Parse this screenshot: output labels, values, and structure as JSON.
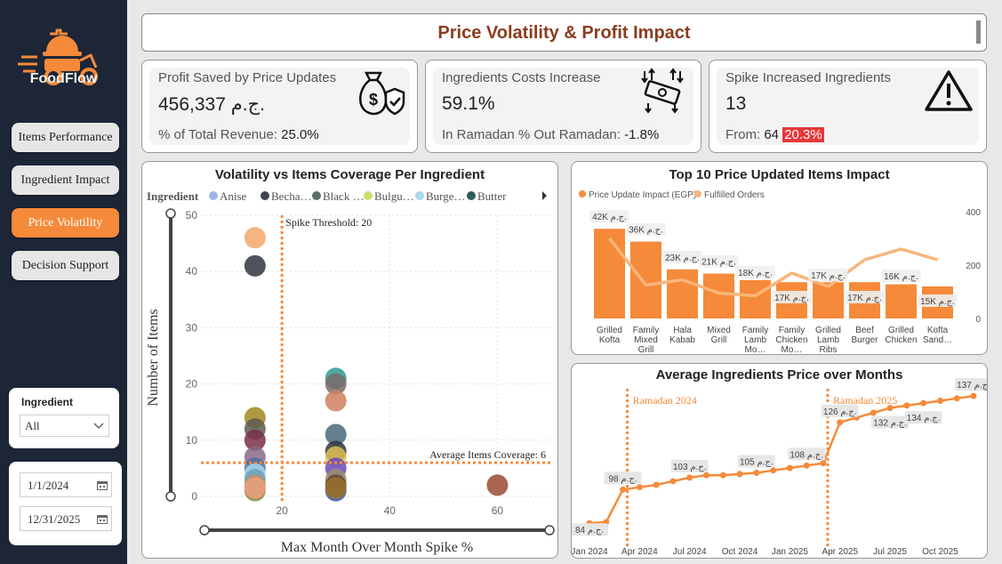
{
  "sidebar": {
    "brand": "FoodFlow",
    "nav": [
      {
        "label": "Items Performance"
      },
      {
        "label": "Ingredient Impact"
      },
      {
        "label": "Price Volatility"
      },
      {
        "label": "Decision Support"
      }
    ],
    "filter": {
      "title": "Ingredient",
      "value": "All"
    },
    "dates": {
      "start": "1/1/2024",
      "end": "12/31/2025"
    }
  },
  "page_title": "Price Volatility & Profit Impact",
  "kpis": [
    {
      "label": "Profit Saved by Price Updates",
      "value": "456,337 ج.م.",
      "sub_label": "% of Total Revenue:",
      "sub_value": "25.0%"
    },
    {
      "label": "Ingredients Costs Increase",
      "value": "59.1%",
      "sub_label": "In Ramadan % Out Ramadan:",
      "sub_value": "-1.8%"
    },
    {
      "label": "Spike Increased Ingredients",
      "value": "13",
      "sub_label": "From:",
      "sub_value": "64",
      "sub_pct": "20.3%"
    }
  ],
  "colors": {
    "accent": "#f58a3a",
    "sidebar": "#1c2636",
    "title": "#8b3d1d",
    "alert": "#e5383b"
  },
  "chart_data": [
    {
      "type": "scatter",
      "title": "Volatility vs Items Coverage Per Ingredient",
      "xlabel": "Max Month Over Month Spike %",
      "ylabel": "Number of Items",
      "xlim": [
        0,
        70
      ],
      "ylim": [
        0,
        50
      ],
      "x_ticks": [
        20,
        40,
        60
      ],
      "y_ticks": [
        0,
        10,
        20,
        30,
        40,
        50
      ],
      "legend_title": "Ingredient",
      "legend": [
        {
          "name": "Anise",
          "color": "#9fb3e8"
        },
        {
          "name": "Becha…",
          "color": "#3d4450"
        },
        {
          "name": "Black …",
          "color": "#5a6e64"
        },
        {
          "name": "Bulgu…",
          "color": "#c8e06a"
        },
        {
          "name": "Burge…",
          "color": "#a8d8ea"
        },
        {
          "name": "Butter",
          "color": "#2f5e5e"
        }
      ],
      "reference_lines": [
        {
          "axis": "x",
          "value": 20,
          "label": "Spike Threshold: 20"
        },
        {
          "axis": "y",
          "value": 6,
          "label": "Average Items Coverage: 6"
        }
      ],
      "points": [
        {
          "x": 15,
          "y": 46,
          "color": "#f5a86a"
        },
        {
          "x": 15,
          "y": 41,
          "color": "#2f3540"
        },
        {
          "x": 15,
          "y": 14,
          "color": "#a08a20"
        },
        {
          "x": 15,
          "y": 12,
          "color": "#5d5a50"
        },
        {
          "x": 15,
          "y": 10,
          "color": "#7a2f4a"
        },
        {
          "x": 15,
          "y": 7,
          "color": "#8a6a8a"
        },
        {
          "x": 15,
          "y": 5,
          "color": "#4a6fa0"
        },
        {
          "x": 15,
          "y": 4,
          "color": "#a8d8ea"
        },
        {
          "x": 15,
          "y": 3,
          "color": "#6aa0c0"
        },
        {
          "x": 15,
          "y": 2,
          "color": "#c09060"
        },
        {
          "x": 15,
          "y": 1,
          "color": "#8a8a4a"
        },
        {
          "x": 15,
          "y": 1.5,
          "color": "#f0a080"
        },
        {
          "x": 30,
          "y": 21,
          "color": "#2a9a90"
        },
        {
          "x": 30,
          "y": 20,
          "color": "#7a6a6a"
        },
        {
          "x": 30,
          "y": 17,
          "color": "#d08060"
        },
        {
          "x": 30,
          "y": 11,
          "color": "#4a6a7a"
        },
        {
          "x": 30,
          "y": 8,
          "color": "#2f3540"
        },
        {
          "x": 30,
          "y": 7,
          "color": "#e0c050"
        },
        {
          "x": 30,
          "y": 5,
          "color": "#6a4ac0"
        },
        {
          "x": 30,
          "y": 3,
          "color": "#a08a6a"
        },
        {
          "x": 30,
          "y": 2,
          "color": "#5a4a3a"
        },
        {
          "x": 30,
          "y": 1,
          "color": "#3a5aa0"
        },
        {
          "x": 30,
          "y": 1.5,
          "color": "#a07020"
        },
        {
          "x": 60,
          "y": 2,
          "color": "#9a4a30"
        }
      ]
    },
    {
      "type": "bar",
      "title": "Top 10 Price Updated Items Impact",
      "categories": [
        "Grilled Kofta",
        "Family Mixed Grill",
        "Hala Kabab",
        "Mixed Grill",
        "Family Lamb Mo…",
        "Family Chicken Mo…",
        "Grilled Lamb Ribs",
        "Beef Burger",
        "Grilled Chicken",
        "Kofta Sand…"
      ],
      "category_lines": [
        [
          "Grilled",
          "Kofta"
        ],
        [
          "Family",
          "Mixed",
          "Grill"
        ],
        [
          "Hala",
          "Kabab"
        ],
        [
          "Mixed",
          "Grill"
        ],
        [
          "Family",
          "Lamb",
          "Mo…"
        ],
        [
          "Family",
          "Chicken",
          "Mo…"
        ],
        [
          "Grilled",
          "Lamb",
          "Ribs"
        ],
        [
          "Beef",
          "Burger"
        ],
        [
          "Grilled",
          "Chicken"
        ],
        [
          "Kofta",
          "Sand…"
        ]
      ],
      "series": [
        {
          "name": "Price Update Impact (EGP)",
          "type": "bar",
          "values": [
            42000,
            36000,
            23000,
            21000,
            18000,
            17000,
            17000,
            17000,
            16000,
            15000
          ],
          "labels": [
            "42K ج.م.",
            "36K ج.م.",
            "23K ج.م.",
            "21K ج.م.",
            "18K ج.م.",
            "17K ج.م.",
            "17K ج.م.",
            "17K ج.م.",
            "16K ج.م.",
            "15K ج.م."
          ],
          "color": "#f58a3a"
        },
        {
          "name": "Fulfilled Orders",
          "type": "line",
          "values": [
            300,
            125,
            145,
            95,
            85,
            170,
            120,
            220,
            260,
            220
          ],
          "color": "#f8b57a"
        }
      ],
      "ylim_left": [
        0,
        50000
      ],
      "ylim_right": [
        0,
        400
      ],
      "right_ticks": [
        0,
        200,
        400
      ]
    },
    {
      "type": "line",
      "title": "Average Ingredients Price over Months",
      "x_ticks": [
        "Jan 2024",
        "Apr 2024",
        "Jul 2024",
        "Oct 2024",
        "Jan 2025",
        "Apr 2025",
        "Jul 2025",
        "Oct 2025"
      ],
      "x": [
        "2024-01",
        "2024-02",
        "2024-03",
        "2024-04",
        "2024-05",
        "2024-06",
        "2024-07",
        "2024-08",
        "2024-09",
        "2024-10",
        "2024-11",
        "2024-12",
        "2025-01",
        "2025-02",
        "2025-03",
        "2025-04",
        "2025-05",
        "2025-06",
        "2025-07",
        "2025-08",
        "2025-09",
        "2025-10",
        "2025-11",
        "2025-12"
      ],
      "values": [
        84,
        84.5,
        98,
        99,
        100,
        101.5,
        103,
        104,
        104,
        104.5,
        105,
        106,
        107,
        108,
        109,
        126,
        128,
        130,
        132,
        133,
        134,
        135,
        136,
        137
      ],
      "labeled_points": [
        {
          "x": "2024-01",
          "label": "84 ج.م."
        },
        {
          "x": "2024-03",
          "label": "98 ج.م."
        },
        {
          "x": "2024-07",
          "label": "103 ج.م."
        },
        {
          "x": "2024-11",
          "label": "105 ج.م."
        },
        {
          "x": "2025-02",
          "label": "108 ج.م."
        },
        {
          "x": "2025-04",
          "label": "126 ج.م."
        },
        {
          "x": "2025-07",
          "label": "132 ج.م."
        },
        {
          "x": "2025-09",
          "label": "134 ج.م."
        },
        {
          "x": "2025-12",
          "label": "137 ج.م."
        }
      ],
      "reference_lines": [
        {
          "x": "2024-03",
          "label": "Ramadan 2024"
        },
        {
          "x": "2025-03",
          "label": "Ramadan 2025"
        }
      ],
      "ylim": [
        80,
        140
      ]
    }
  ]
}
